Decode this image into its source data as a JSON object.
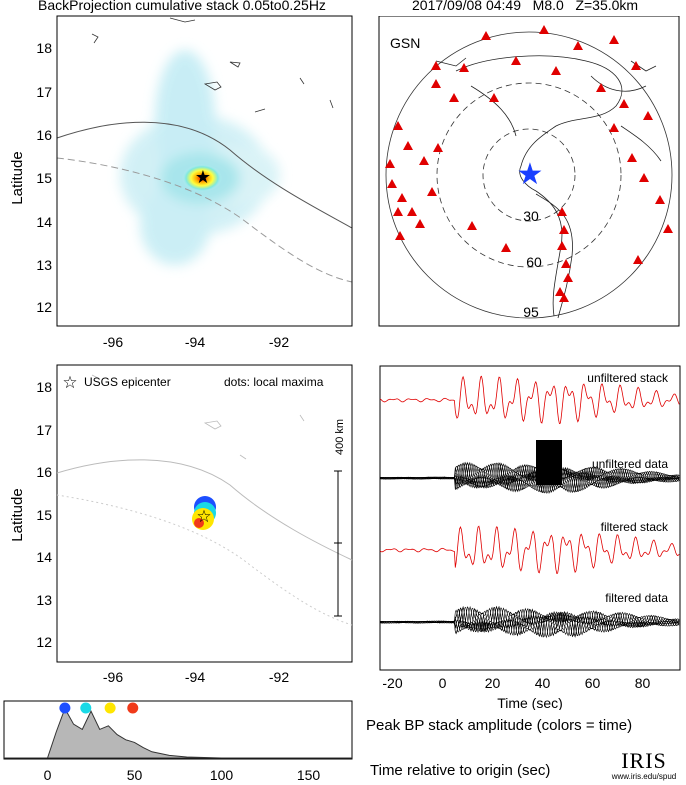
{
  "header": {
    "title_left": "BackProjection cumulative stack 0.05to0.25Hz",
    "title_right": "2017/09/08 04:49   M8.0   Z=35.0km"
  },
  "map_top": {
    "ylabel": "Latitude",
    "xticks": [
      "-96",
      "-94",
      "-92"
    ],
    "yticks": [
      "18",
      "17",
      "16",
      "15",
      "14",
      "13",
      "12"
    ],
    "epicenter": {
      "lon": -93.9,
      "lat": 15.0
    }
  },
  "globe": {
    "label": "GSN",
    "rings": [
      "30",
      "60",
      "95"
    ],
    "source_color": "#1a3fff",
    "station_color": "#e00000"
  },
  "map_bottom": {
    "ylabel": "Latitude",
    "legend_epicenter": "USGS epicenter",
    "legend_dots": "dots: local maxima",
    "scale_label": "400 km",
    "xticks": [
      "-96",
      "-94",
      "-92"
    ],
    "yticks": [
      "18",
      "17",
      "16",
      "15",
      "14",
      "13",
      "12"
    ]
  },
  "waveforms": {
    "labels": [
      "unfiltered stack",
      "unfiltered data",
      "filtered stack",
      "filtered data"
    ],
    "xlabel": "Time (sec)",
    "xticks": [
      "-20",
      "0",
      "20",
      "40",
      "60",
      "80"
    ],
    "xlim": [
      -25,
      95
    ]
  },
  "amplitude": {
    "xticks": [
      "0",
      "50",
      "100",
      "150"
    ],
    "xlim": [
      -25,
      175
    ],
    "dots": [
      {
        "t": 10,
        "color": "#1d4fff"
      },
      {
        "t": 22,
        "color": "#19d9e6"
      },
      {
        "t": 36,
        "color": "#ffe600"
      },
      {
        "t": 49,
        "color": "#f03a1a"
      }
    ]
  },
  "captions": {
    "peak": "Peak BP stack amplitude (colors = time)",
    "time": "Time relative to origin (sec)"
  },
  "logo": {
    "name": "IRIS",
    "url": "www.iris.edu/spud"
  },
  "chart_data": {
    "type": "area",
    "x": [
      -25,
      0,
      5,
      10,
      15,
      20,
      25,
      30,
      35,
      40,
      45,
      50,
      55,
      60,
      70,
      80,
      100,
      175
    ],
    "y": [
      0,
      0,
      0.5,
      0.95,
      0.65,
      0.55,
      0.9,
      0.55,
      0.62,
      0.45,
      0.35,
      0.3,
      0.2,
      0.12,
      0.05,
      0.02,
      0,
      0
    ],
    "xlim": [
      -25,
      175
    ],
    "ylim": [
      0,
      1
    ]
  }
}
